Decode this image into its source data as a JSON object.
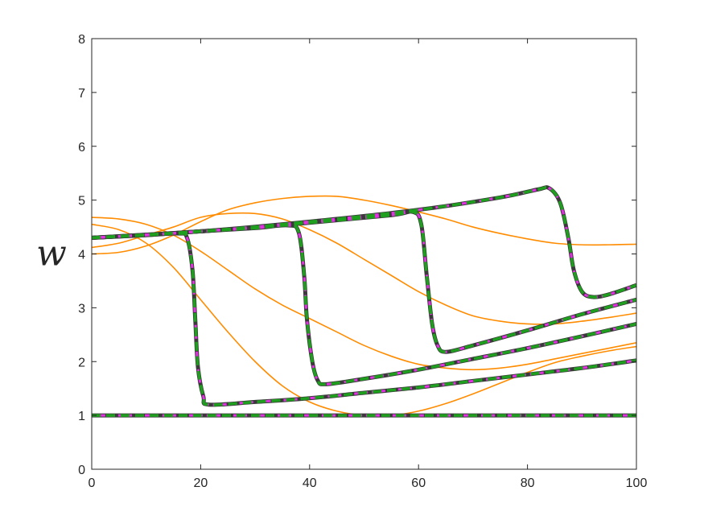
{
  "chart_data": {
    "type": "line",
    "title": "",
    "xlabel": "",
    "ylabel": "w",
    "xlim": [
      0,
      100
    ],
    "ylim": [
      0,
      8
    ],
    "xticks": [
      "0",
      "20",
      "40",
      "60",
      "80",
      "100"
    ],
    "yticks": [
      "0",
      "1",
      "2",
      "3",
      "4",
      "5",
      "6",
      "7",
      "8"
    ],
    "grid": false,
    "legend": "none",
    "colors": {
      "background": "#ffffff",
      "axis": "#262626",
      "orange": "#ff8c00",
      "dark": "#3a3a3a",
      "magenta": "#e030e0",
      "green": "#1ea01e"
    },
    "orange_series": [
      {
        "values": [
          [
            0,
            4.55
          ],
          [
            5,
            4.45
          ],
          [
            10,
            4.2
          ],
          [
            15,
            3.75
          ],
          [
            20,
            3.15
          ],
          [
            25,
            2.55
          ],
          [
            30,
            2.0
          ],
          [
            35,
            1.55
          ],
          [
            40,
            1.25
          ],
          [
            45,
            1.08
          ],
          [
            50,
            1.0
          ],
          [
            55,
            1.0
          ],
          [
            60,
            1.08
          ],
          [
            65,
            1.22
          ],
          [
            70,
            1.4
          ],
          [
            75,
            1.6
          ],
          [
            80,
            1.8
          ],
          [
            85,
            1.98
          ],
          [
            90,
            2.1
          ],
          [
            95,
            2.2
          ],
          [
            100,
            2.28
          ]
        ]
      },
      {
        "values": [
          [
            0,
            4.68
          ],
          [
            5,
            4.65
          ],
          [
            10,
            4.55
          ],
          [
            15,
            4.35
          ],
          [
            20,
            4.05
          ],
          [
            25,
            3.7
          ],
          [
            30,
            3.35
          ],
          [
            35,
            3.05
          ],
          [
            40,
            2.8
          ],
          [
            45,
            2.55
          ],
          [
            50,
            2.3
          ],
          [
            55,
            2.1
          ],
          [
            60,
            1.95
          ],
          [
            65,
            1.88
          ],
          [
            70,
            1.85
          ],
          [
            75,
            1.88
          ],
          [
            80,
            1.95
          ],
          [
            85,
            2.05
          ],
          [
            90,
            2.15
          ],
          [
            95,
            2.25
          ],
          [
            100,
            2.35
          ]
        ]
      },
      {
        "values": [
          [
            0,
            4.12
          ],
          [
            5,
            4.2
          ],
          [
            10,
            4.35
          ],
          [
            15,
            4.5
          ],
          [
            20,
            4.68
          ],
          [
            25,
            4.75
          ],
          [
            30,
            4.75
          ],
          [
            35,
            4.65
          ],
          [
            40,
            4.45
          ],
          [
            45,
            4.2
          ],
          [
            50,
            3.9
          ],
          [
            55,
            3.6
          ],
          [
            60,
            3.3
          ],
          [
            65,
            3.05
          ],
          [
            70,
            2.85
          ],
          [
            75,
            2.75
          ],
          [
            80,
            2.7
          ],
          [
            85,
            2.7
          ],
          [
            90,
            2.75
          ],
          [
            95,
            2.82
          ],
          [
            100,
            2.9
          ]
        ]
      },
      {
        "values": [
          [
            0,
            4.0
          ],
          [
            5,
            4.03
          ],
          [
            10,
            4.15
          ],
          [
            15,
            4.35
          ],
          [
            20,
            4.6
          ],
          [
            25,
            4.82
          ],
          [
            30,
            4.95
          ],
          [
            35,
            5.03
          ],
          [
            40,
            5.07
          ],
          [
            45,
            5.07
          ],
          [
            50,
            5.0
          ],
          [
            55,
            4.9
          ],
          [
            60,
            4.78
          ],
          [
            65,
            4.65
          ],
          [
            70,
            4.5
          ],
          [
            75,
            4.38
          ],
          [
            80,
            4.28
          ],
          [
            85,
            4.2
          ],
          [
            90,
            4.17
          ],
          [
            95,
            4.17
          ],
          [
            100,
            4.18
          ]
        ]
      }
    ],
    "solution_series": [
      {
        "values": [
          [
            0,
            4.3
          ],
          [
            10,
            4.35
          ],
          [
            16,
            4.38
          ],
          [
            17.5,
            4.3
          ],
          [
            18.5,
            3.7
          ],
          [
            19,
            2.8
          ],
          [
            19.5,
            1.9
          ],
          [
            20.5,
            1.35
          ],
          [
            21.5,
            1.2
          ],
          [
            30,
            1.25
          ],
          [
            40,
            1.32
          ],
          [
            50,
            1.42
          ],
          [
            60,
            1.52
          ],
          [
            70,
            1.64
          ],
          [
            80,
            1.76
          ],
          [
            90,
            1.88
          ],
          [
            100,
            2.02
          ]
        ]
      },
      {
        "values": [
          [
            0,
            4.3
          ],
          [
            10,
            4.35
          ],
          [
            20,
            4.42
          ],
          [
            30,
            4.48
          ],
          [
            36,
            4.53
          ],
          [
            38,
            4.4
          ],
          [
            39,
            3.6
          ],
          [
            39.5,
            2.8
          ],
          [
            40.5,
            2.0
          ],
          [
            41.5,
            1.65
          ],
          [
            43,
            1.58
          ],
          [
            50,
            1.68
          ],
          [
            60,
            1.85
          ],
          [
            70,
            2.05
          ],
          [
            80,
            2.25
          ],
          [
            90,
            2.47
          ],
          [
            100,
            2.7
          ]
        ]
      },
      {
        "values": [
          [
            0,
            4.3
          ],
          [
            20,
            4.42
          ],
          [
            40,
            4.58
          ],
          [
            55,
            4.72
          ],
          [
            59,
            4.78
          ],
          [
            60.5,
            4.55
          ],
          [
            61.5,
            3.6
          ],
          [
            62.5,
            2.7
          ],
          [
            63.5,
            2.3
          ],
          [
            65,
            2.18
          ],
          [
            70,
            2.3
          ],
          [
            80,
            2.58
          ],
          [
            90,
            2.88
          ],
          [
            100,
            3.15
          ]
        ]
      },
      {
        "values": [
          [
            0,
            4.3
          ],
          [
            20,
            4.42
          ],
          [
            40,
            4.6
          ],
          [
            60,
            4.82
          ],
          [
            75,
            5.05
          ],
          [
            82,
            5.2
          ],
          [
            84,
            5.22
          ],
          [
            86,
            4.95
          ],
          [
            87.5,
            4.3
          ],
          [
            88.5,
            3.7
          ],
          [
            90,
            3.3
          ],
          [
            92,
            3.2
          ],
          [
            95,
            3.25
          ],
          [
            100,
            3.42
          ]
        ]
      },
      {
        "values": [
          [
            0,
            1.0
          ],
          [
            50,
            1.0
          ],
          [
            100,
            1.0
          ]
        ]
      }
    ],
    "series_styles": [
      {
        "color_key": "dark",
        "width": 5,
        "dash": ""
      },
      {
        "color_key": "magenta",
        "width": 3,
        "dash": "6 5"
      },
      {
        "color_key": "green",
        "width": 3.5,
        "dash": "11 7"
      }
    ]
  }
}
